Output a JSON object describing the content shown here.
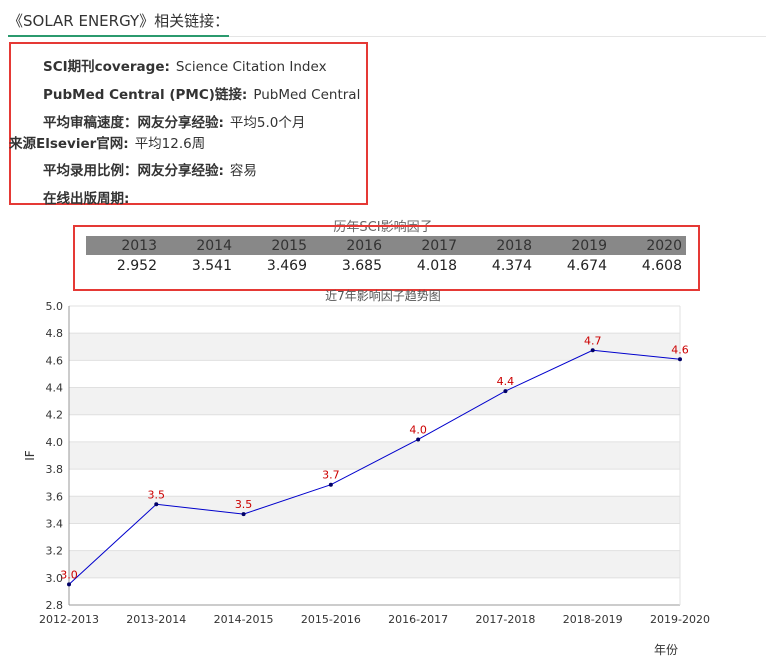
{
  "header": {
    "title": "《SOLAR ENERGY》相关链接："
  },
  "info": [
    {
      "key": "SCI期刊coverage:",
      "value": "Science Citation Index"
    },
    {
      "key": "PubMed Central (PMC)链接:",
      "value": "PubMed Central"
    },
    {
      "key": "平均审稿速度：网友分享经验:",
      "value": "平均5.0个月"
    },
    {
      "key": "来源Elsevier官网:",
      "value": "平均12.6周"
    },
    {
      "key": "平均录用比例：网友分享经验:",
      "value": "容易"
    },
    {
      "key": "在线出版周期:",
      "value": ""
    }
  ],
  "if_table": {
    "title": "历年SCI影响因子",
    "years": [
      "2013",
      "2014",
      "2015",
      "2016",
      "2017",
      "2018",
      "2019",
      "2020"
    ],
    "values": [
      "2.952",
      "3.541",
      "3.469",
      "3.685",
      "4.018",
      "4.374",
      "4.674",
      "4.608"
    ]
  },
  "chart_data": {
    "type": "line",
    "title": "近7年影响因子趋势图",
    "xlabel": "年份",
    "ylabel": "IF",
    "categories": [
      "2012-2013",
      "2013-2014",
      "2014-2015",
      "2015-2016",
      "2016-2017",
      "2017-2018",
      "2018-2019",
      "2019-2020"
    ],
    "values": [
      2.952,
      3.541,
      3.469,
      3.685,
      4.018,
      4.374,
      4.674,
      4.608
    ],
    "data_labels": [
      "3.0",
      "3.5",
      "3.5",
      "3.7",
      "4.0",
      "4.4",
      "4.7",
      "4.6"
    ],
    "ylim": [
      2.8,
      5.0
    ],
    "yticks": [
      "2.8",
      "3.0",
      "3.2",
      "3.4",
      "3.6",
      "3.8",
      "4.0",
      "4.2",
      "4.4",
      "4.6",
      "4.8",
      "5.0"
    ],
    "grid": true,
    "line_color": "#0000cc",
    "label_color": "#cc0000"
  }
}
